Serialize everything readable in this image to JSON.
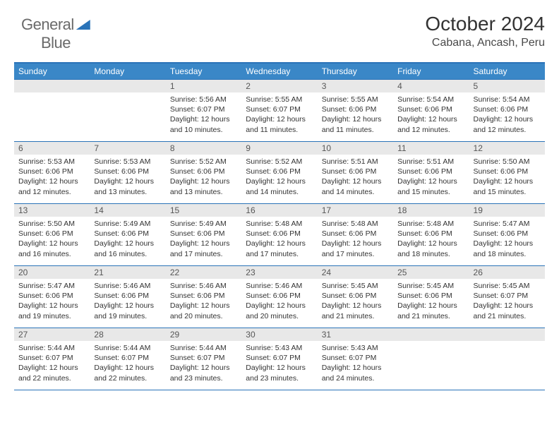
{
  "logo": {
    "text_gray": "General",
    "text_blue": "Blue"
  },
  "header": {
    "title": "October 2024",
    "location": "Cabana, Ancash, Peru"
  },
  "colors": {
    "header_bg": "#3a87c7",
    "border": "#2a73b8",
    "daynum_bg": "#e8e8e8",
    "text": "#333333"
  },
  "weekdays": [
    "Sunday",
    "Monday",
    "Tuesday",
    "Wednesday",
    "Thursday",
    "Friday",
    "Saturday"
  ],
  "calendar": {
    "first_weekday_index": 2,
    "days_in_month": 31
  },
  "days": {
    "1": {
      "sunrise": "5:56 AM",
      "sunset": "6:07 PM",
      "daylight": "12 hours and 10 minutes."
    },
    "2": {
      "sunrise": "5:55 AM",
      "sunset": "6:07 PM",
      "daylight": "12 hours and 11 minutes."
    },
    "3": {
      "sunrise": "5:55 AM",
      "sunset": "6:06 PM",
      "daylight": "12 hours and 11 minutes."
    },
    "4": {
      "sunrise": "5:54 AM",
      "sunset": "6:06 PM",
      "daylight": "12 hours and 12 minutes."
    },
    "5": {
      "sunrise": "5:54 AM",
      "sunset": "6:06 PM",
      "daylight": "12 hours and 12 minutes."
    },
    "6": {
      "sunrise": "5:53 AM",
      "sunset": "6:06 PM",
      "daylight": "12 hours and 12 minutes."
    },
    "7": {
      "sunrise": "5:53 AM",
      "sunset": "6:06 PM",
      "daylight": "12 hours and 13 minutes."
    },
    "8": {
      "sunrise": "5:52 AM",
      "sunset": "6:06 PM",
      "daylight": "12 hours and 13 minutes."
    },
    "9": {
      "sunrise": "5:52 AM",
      "sunset": "6:06 PM",
      "daylight": "12 hours and 14 minutes."
    },
    "10": {
      "sunrise": "5:51 AM",
      "sunset": "6:06 PM",
      "daylight": "12 hours and 14 minutes."
    },
    "11": {
      "sunrise": "5:51 AM",
      "sunset": "6:06 PM",
      "daylight": "12 hours and 15 minutes."
    },
    "12": {
      "sunrise": "5:50 AM",
      "sunset": "6:06 PM",
      "daylight": "12 hours and 15 minutes."
    },
    "13": {
      "sunrise": "5:50 AM",
      "sunset": "6:06 PM",
      "daylight": "12 hours and 16 minutes."
    },
    "14": {
      "sunrise": "5:49 AM",
      "sunset": "6:06 PM",
      "daylight": "12 hours and 16 minutes."
    },
    "15": {
      "sunrise": "5:49 AM",
      "sunset": "6:06 PM",
      "daylight": "12 hours and 17 minutes."
    },
    "16": {
      "sunrise": "5:48 AM",
      "sunset": "6:06 PM",
      "daylight": "12 hours and 17 minutes."
    },
    "17": {
      "sunrise": "5:48 AM",
      "sunset": "6:06 PM",
      "daylight": "12 hours and 17 minutes."
    },
    "18": {
      "sunrise": "5:48 AM",
      "sunset": "6:06 PM",
      "daylight": "12 hours and 18 minutes."
    },
    "19": {
      "sunrise": "5:47 AM",
      "sunset": "6:06 PM",
      "daylight": "12 hours and 18 minutes."
    },
    "20": {
      "sunrise": "5:47 AM",
      "sunset": "6:06 PM",
      "daylight": "12 hours and 19 minutes."
    },
    "21": {
      "sunrise": "5:46 AM",
      "sunset": "6:06 PM",
      "daylight": "12 hours and 19 minutes."
    },
    "22": {
      "sunrise": "5:46 AM",
      "sunset": "6:06 PM",
      "daylight": "12 hours and 20 minutes."
    },
    "23": {
      "sunrise": "5:46 AM",
      "sunset": "6:06 PM",
      "daylight": "12 hours and 20 minutes."
    },
    "24": {
      "sunrise": "5:45 AM",
      "sunset": "6:06 PM",
      "daylight": "12 hours and 21 minutes."
    },
    "25": {
      "sunrise": "5:45 AM",
      "sunset": "6:06 PM",
      "daylight": "12 hours and 21 minutes."
    },
    "26": {
      "sunrise": "5:45 AM",
      "sunset": "6:07 PM",
      "daylight": "12 hours and 21 minutes."
    },
    "27": {
      "sunrise": "5:44 AM",
      "sunset": "6:07 PM",
      "daylight": "12 hours and 22 minutes."
    },
    "28": {
      "sunrise": "5:44 AM",
      "sunset": "6:07 PM",
      "daylight": "12 hours and 22 minutes."
    },
    "29": {
      "sunrise": "5:44 AM",
      "sunset": "6:07 PM",
      "daylight": "12 hours and 23 minutes."
    },
    "30": {
      "sunrise": "5:43 AM",
      "sunset": "6:07 PM",
      "daylight": "12 hours and 23 minutes."
    },
    "31": {
      "sunrise": "5:43 AM",
      "sunset": "6:07 PM",
      "daylight": "12 hours and 24 minutes."
    }
  },
  "labels": {
    "sunrise_prefix": "Sunrise: ",
    "sunset_prefix": "Sunset: ",
    "daylight_prefix": "Daylight: "
  }
}
